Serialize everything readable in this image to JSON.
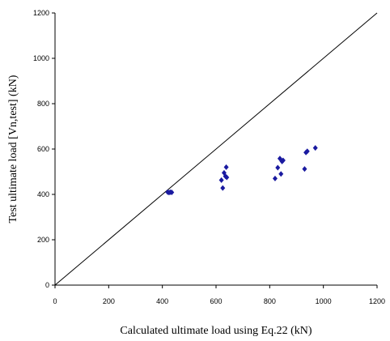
{
  "chart_data": {
    "type": "scatter",
    "title": "",
    "xlabel": "Calculated ultimate load using Eq.22 (kN)",
    "ylabel": "Test ultimate load [Vn,test] (kN)",
    "xlim": [
      0,
      1200
    ],
    "ylim": [
      0,
      1200
    ],
    "x_ticks": [
      "0",
      "200",
      "400",
      "600",
      "800",
      "1000",
      "1200"
    ],
    "y_ticks": [
      "0",
      "200",
      "400",
      "600",
      "800",
      "1000",
      "1200"
    ],
    "grid": false,
    "legend": "none",
    "marker_color": "#1a1aa0",
    "reference_line": {
      "from": [
        0,
        0
      ],
      "to": [
        1200,
        1200
      ],
      "color": "#000000"
    },
    "series": [
      {
        "points": [
          [
            420,
            410
          ],
          [
            425,
            408
          ],
          [
            430,
            410
          ],
          [
            435,
            409
          ],
          [
            620,
            463
          ],
          [
            625,
            428
          ],
          [
            630,
            495
          ],
          [
            635,
            480
          ],
          [
            638,
            520
          ],
          [
            640,
            475
          ],
          [
            820,
            470
          ],
          [
            830,
            518
          ],
          [
            838,
            558
          ],
          [
            842,
            490
          ],
          [
            846,
            545
          ],
          [
            850,
            550
          ],
          [
            930,
            512
          ],
          [
            935,
            585
          ],
          [
            940,
            590
          ],
          [
            970,
            605
          ]
        ]
      }
    ]
  }
}
